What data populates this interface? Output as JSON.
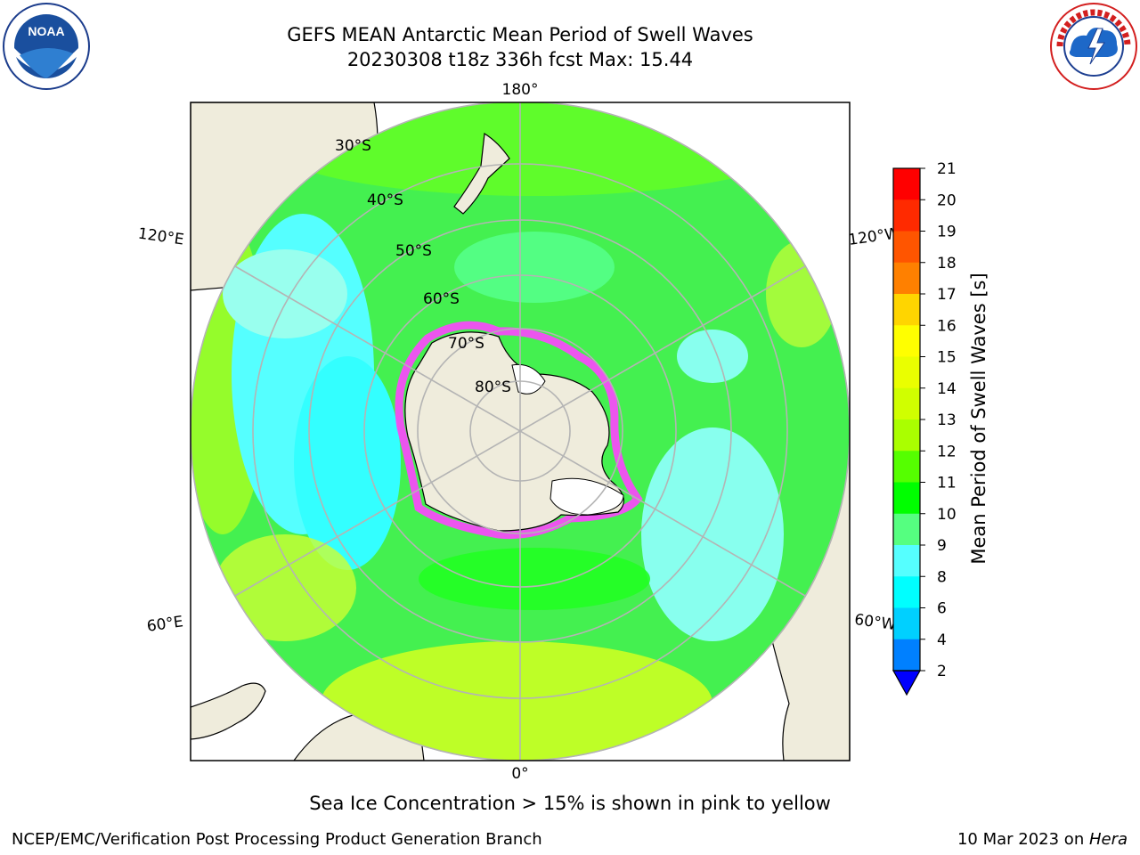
{
  "header": {
    "title_line1": "GEFS MEAN Antarctic Mean Period of Swell Waves",
    "title_line2": "20230308 t18z 336h fcst   Max: 15.44"
  },
  "logos": {
    "left": {
      "text": "NOAA",
      "ring_text": "NATIONAL OCEANIC AND ATMOSPHERIC ADMINISTRATION • U.S. DEPARTMENT OF COMMERCE"
    },
    "right": {
      "ring_text": "NATIONAL WEATHER SERVICE"
    }
  },
  "map": {
    "longitude_labels": [
      "180°",
      "120°E",
      "120°W",
      "60°E",
      "60°W",
      "0°"
    ],
    "latitude_labels": [
      "30°S",
      "40°S",
      "50°S",
      "60°S",
      "70°S",
      "80°S"
    ],
    "colors": {
      "land": "#efecdc",
      "graticule": "#b4b4b4",
      "sea_ice": "#ff44ff"
    }
  },
  "colorbar": {
    "label": "Mean Period of Swell Waves [s]",
    "ticks": [
      "21",
      "20",
      "19",
      "18",
      "17",
      "16",
      "15",
      "14",
      "13",
      "12",
      "11",
      "10",
      "9",
      "8",
      "6",
      "4",
      "2"
    ],
    "colors_top_to_bottom": [
      "#ff0000",
      "#ff2a00",
      "#ff5500",
      "#ff8000",
      "#ffaa00",
      "#ffd500",
      "#ffff00",
      "#eaff00",
      "#d0ff00",
      "#aaff00",
      "#55ff00",
      "#00ff00",
      "#55ff80",
      "#aaffff",
      "#55ffff",
      "#00ffff",
      "#00d0ff",
      "#0080ff",
      "#0000ff"
    ]
  },
  "caption": "Sea Ice Concentration > 15% is shown in pink to yellow",
  "footer": {
    "left": "NCEP/EMC/Verification Post Processing Product Generation Branch",
    "right_date": "10 Mar 2023 on ",
    "right_host": "Hera"
  }
}
